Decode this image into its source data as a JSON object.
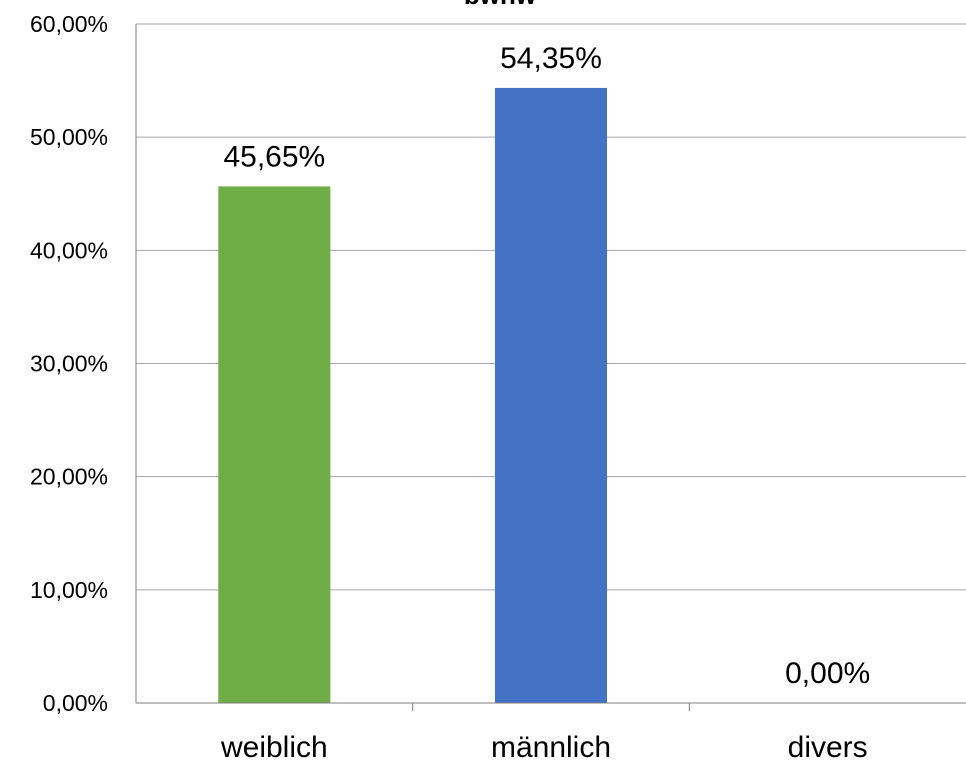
{
  "chart_data": {
    "type": "bar",
    "title": "bwnw",
    "categories": [
      "weiblich",
      "männlich",
      "divers"
    ],
    "values": [
      45.65,
      54.35,
      0.0
    ],
    "value_labels": [
      "45,65%",
      "54,35%",
      "0,00%"
    ],
    "colors": [
      "#70ad47",
      "#4472c4",
      "#a5a5a5"
    ],
    "ylim": [
      0,
      60
    ],
    "y_ticks": [
      0,
      10,
      20,
      30,
      40,
      50,
      60
    ],
    "y_tick_labels": [
      "0,00%",
      "10,00%",
      "20,00%",
      "30,00%",
      "40,00%",
      "50,00%",
      "60,00%"
    ],
    "xlabel": "",
    "ylabel": "",
    "grid": true,
    "legend": "none"
  }
}
